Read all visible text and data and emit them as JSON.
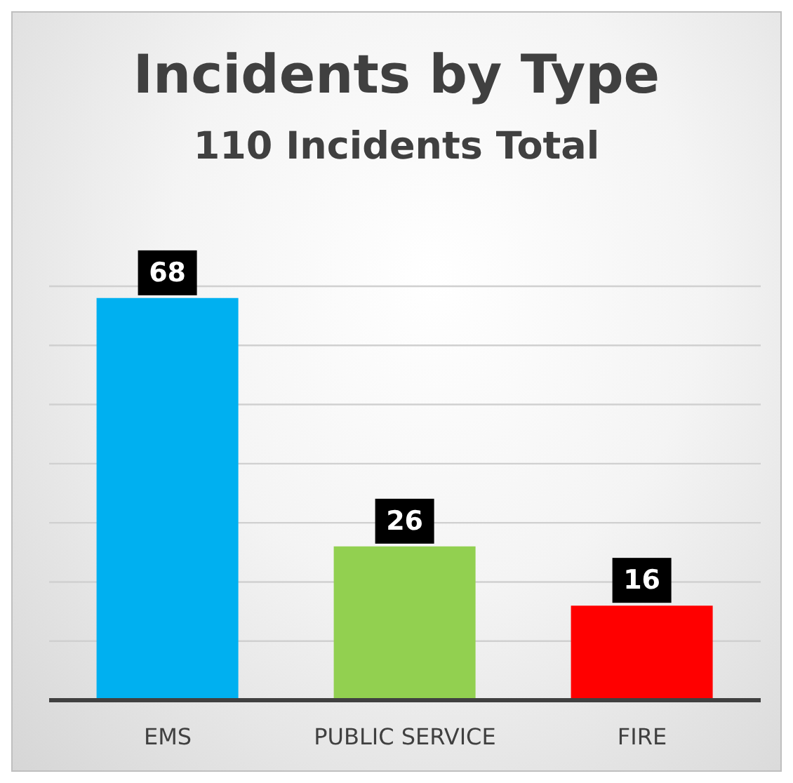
{
  "chart_data": {
    "type": "bar",
    "title": "Incidents by Type",
    "subtitle": "110 Incidents Total",
    "categories": [
      "EMS",
      "PUBLIC SERVICE",
      "FIRE"
    ],
    "values": [
      68,
      26,
      16
    ],
    "colors": [
      "#00b0f0",
      "#92d050",
      "#ff0000"
    ],
    "ylim": [
      0,
      70
    ],
    "yticks": [
      {
        "value": 0,
        "label": null
      },
      {
        "value": 10,
        "label": null
      },
      {
        "value": 20,
        "label": null
      },
      {
        "value": 30,
        "label": null
      },
      {
        "value": 40,
        "label": null
      },
      {
        "value": 50,
        "label": null
      },
      {
        "value": 60,
        "label": null
      },
      {
        "value": 70,
        "label": null
      }
    ],
    "tick_labels": "x",
    "grid": "y",
    "data_labels": true
  }
}
